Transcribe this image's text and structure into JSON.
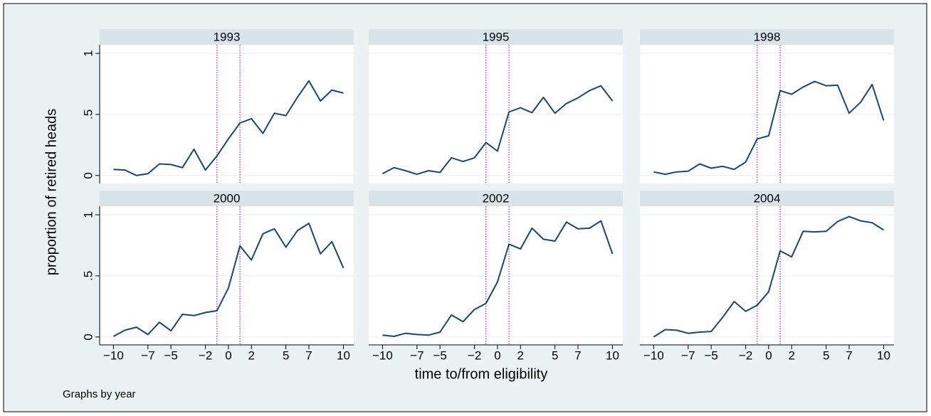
{
  "chart_data": {
    "type": "line",
    "ylabel": "proportion of retired heads",
    "xlabel": "time to/from eligibility",
    "note": "Graphs by year",
    "color": "#1a476f",
    "reference_lines": [
      -1,
      1
    ],
    "reference_color": "#c21fb0",
    "grid": true,
    "xlim": [
      -11.2,
      10.9
    ],
    "ylim": [
      -0.065,
      1.07
    ],
    "xticks": [
      {
        "value": -10,
        "label": "−10"
      },
      {
        "value": -7,
        "label": "−7"
      },
      {
        "value": -5,
        "label": "−5"
      },
      {
        "value": -2,
        "label": "−2"
      },
      0,
      2,
      5,
      7,
      10
    ],
    "yticks": [
      0,
      {
        "value": 0.5,
        "label": ".5"
      },
      1
    ],
    "x": [
      -10,
      -9,
      -8,
      -7,
      -6,
      -5,
      -4,
      -3,
      -2,
      -1,
      0,
      1,
      2,
      3,
      4,
      5,
      6,
      7,
      8,
      9,
      10
    ],
    "panels": [
      {
        "title": "1993",
        "values": [
          0.05,
          0.045,
          0,
          0.015,
          0.095,
          0.09,
          0.065,
          0.215,
          0.045,
          0.16,
          0.3,
          0.43,
          0.465,
          0.345,
          0.51,
          0.49,
          0.64,
          0.775,
          0.61,
          0.7,
          0.675
        ]
      },
      {
        "title": "1995",
        "values": [
          0.015,
          0.065,
          0.04,
          0.01,
          0.04,
          0.025,
          0.145,
          0.115,
          0.145,
          0.27,
          0.2,
          0.52,
          0.555,
          0.515,
          0.64,
          0.51,
          0.59,
          0.635,
          0.695,
          0.735,
          0.61
        ]
      },
      {
        "title": "1998",
        "values": [
          0.03,
          0.01,
          0.03,
          0.035,
          0.095,
          0.06,
          0.075,
          0.05,
          0.11,
          0.3,
          0.325,
          0.695,
          0.665,
          0.725,
          0.77,
          0.735,
          0.74,
          0.51,
          0.6,
          0.745,
          0.45
        ]
      },
      {
        "title": "2000",
        "values": [
          0.005,
          0.055,
          0.08,
          0.02,
          0.12,
          0.05,
          0.185,
          0.175,
          0.2,
          0.215,
          0.4,
          0.745,
          0.63,
          0.845,
          0.885,
          0.735,
          0.87,
          0.93,
          0.68,
          0.78,
          0.565
        ]
      },
      {
        "title": "2002",
        "values": [
          0.015,
          0.005,
          0.03,
          0.02,
          0.015,
          0.04,
          0.18,
          0.125,
          0.225,
          0.275,
          0.45,
          0.76,
          0.72,
          0.89,
          0.8,
          0.785,
          0.94,
          0.885,
          0.89,
          0.95,
          0.68
        ]
      },
      {
        "title": "2004",
        "values": [
          0,
          0.06,
          0.055,
          0.03,
          0.04,
          0.045,
          0.16,
          0.29,
          0.21,
          0.26,
          0.37,
          0.705,
          0.655,
          0.865,
          0.86,
          0.865,
          0.945,
          0.985,
          0.95,
          0.935,
          0.875
        ]
      }
    ]
  }
}
